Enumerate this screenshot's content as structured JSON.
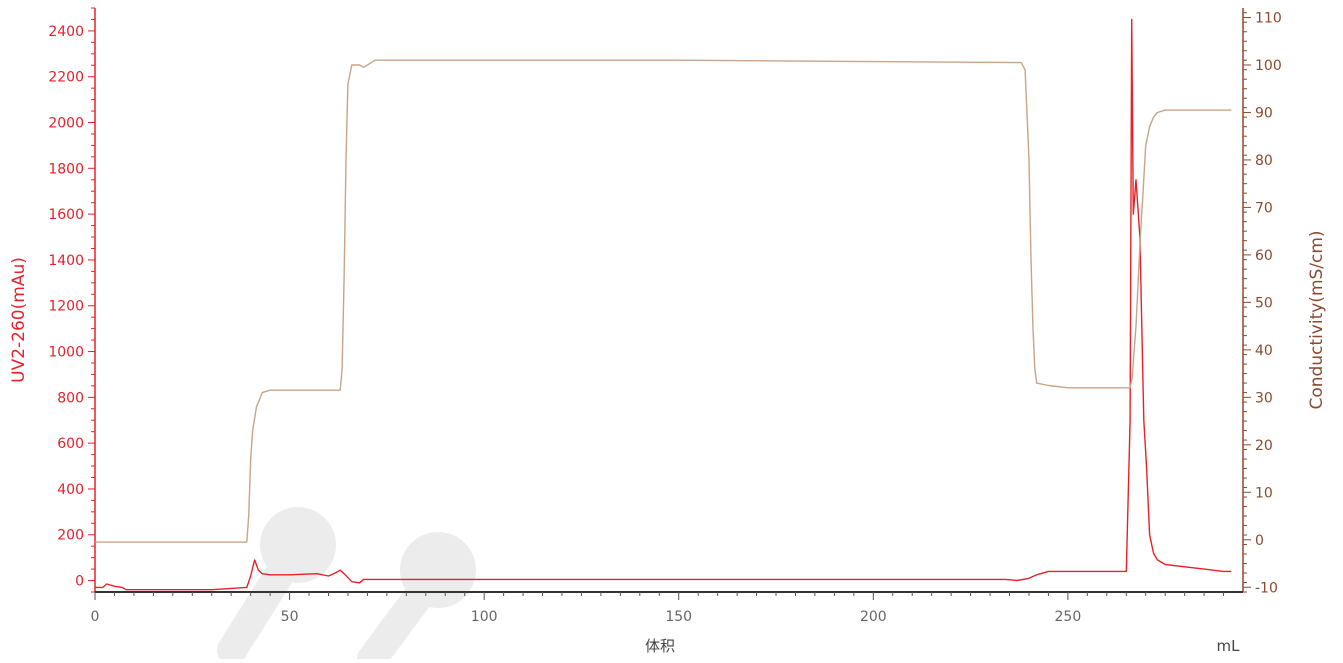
{
  "chart_data": {
    "type": "line",
    "xlabel": "体积",
    "xunit": "mL",
    "xlim": [
      0,
      295
    ],
    "xticks": [
      0,
      50,
      100,
      150,
      200,
      250
    ],
    "y_left": {
      "label": "UV2-260(mAu)",
      "ylim": [
        -50,
        2500
      ],
      "ticks": [
        0,
        200,
        400,
        600,
        800,
        1000,
        1200,
        1400,
        1600,
        1800,
        2000,
        2200,
        2400
      ],
      "color": "#e8202a"
    },
    "y_right": {
      "label": "Conductivity(mS/cm)",
      "ylim": [
        -11,
        112
      ],
      "ticks": [
        -10,
        0,
        10,
        20,
        30,
        40,
        50,
        60,
        70,
        80,
        90,
        100,
        110
      ],
      "color": "#8b4a2e"
    },
    "series": [
      {
        "axis": "left",
        "color": "#e8202a",
        "x": [
          0,
          2,
          3,
          5,
          7,
          8,
          10,
          20,
          30,
          39,
          40,
          41,
          42,
          43,
          45,
          50,
          57,
          60,
          62,
          63,
          64,
          66,
          68,
          69,
          70,
          100,
          150,
          200,
          234,
          237,
          240,
          242,
          245,
          250,
          260,
          265,
          266,
          266.4,
          266.8,
          267.5,
          268.5,
          269.5,
          270.2,
          271,
          272,
          273,
          275,
          280,
          285,
          290,
          292
        ],
        "y": [
          -30,
          -30,
          -15,
          -25,
          -30,
          -40,
          -40,
          -40,
          -40,
          -30,
          20,
          90,
          45,
          30,
          25,
          25,
          30,
          20,
          35,
          45,
          30,
          -5,
          -10,
          5,
          5,
          5,
          5,
          5,
          5,
          0,
          10,
          25,
          40,
          40,
          40,
          40,
          700,
          2450,
          1600,
          1750,
          1500,
          700,
          500,
          200,
          120,
          90,
          70,
          60,
          50,
          40,
          40
        ]
      },
      {
        "axis": "right",
        "color": "#c8a488",
        "x": [
          0,
          20,
          39,
          39.5,
          40,
          40.5,
          41.5,
          43,
          45,
          50,
          63,
          63.5,
          64,
          64.5,
          65,
          66,
          68,
          69,
          70,
          72,
          75,
          150,
          238,
          239,
          240,
          240.5,
          241,
          241.5,
          242,
          245,
          250,
          260,
          266,
          266.5,
          267.5,
          268.5,
          269.5,
          270,
          271,
          272,
          273,
          275,
          280,
          292
        ],
        "y": [
          -0.5,
          -0.5,
          -0.5,
          5,
          17,
          23,
          28,
          31,
          31.5,
          31.5,
          31.5,
          36,
          55,
          80,
          96,
          100,
          100,
          99.5,
          100,
          101,
          101,
          101,
          100.5,
          99,
          80,
          60,
          45,
          36,
          33,
          32.5,
          32,
          32,
          32,
          34,
          45,
          62,
          76,
          83,
          87,
          89,
          90,
          90.5,
          90.5,
          90.5
        ]
      }
    ]
  }
}
